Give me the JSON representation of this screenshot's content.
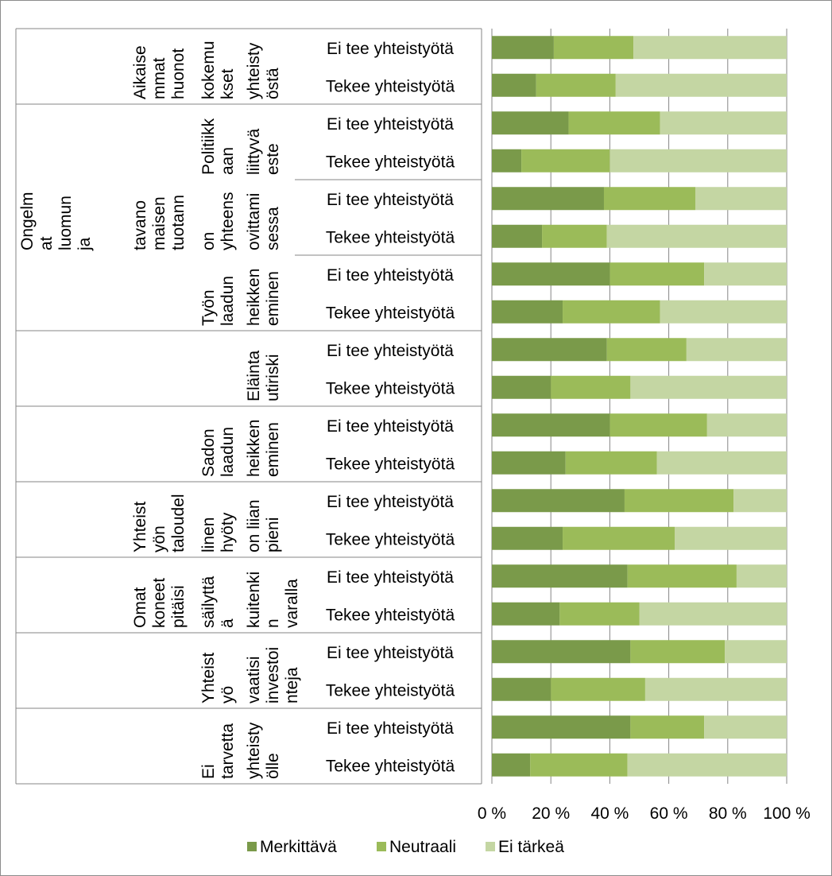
{
  "chart_data": {
    "type": "bar",
    "orientation": "horizontal",
    "stacked": "percent",
    "xlim": [
      0,
      100
    ],
    "xticks": [
      0,
      20,
      40,
      60,
      80,
      100
    ],
    "xtick_labels": [
      "0 %",
      "20 %",
      "40 %",
      "60 %",
      "80 %",
      "100 %"
    ],
    "grid": "vertical",
    "legend_position": "bottom",
    "groups": [
      {
        "label": "Aikaise mmat huonot kokemu kset yhteisty östä",
        "lines": [
          {
            "x": 182,
            "y": 8,
            "rows": [
              "Aikaise",
              "mmat",
              "huonot"
            ]
          },
          {
            "x": 268,
            "y": 8,
            "rows": [
              "kokemu",
              "kset"
            ]
          },
          {
            "x": 325,
            "y": 8,
            "rows": [
              "yhteisty",
              "östä"
            ]
          }
        ]
      },
      {
        "label": "Politiikk aan liittyvä este",
        "lines": [
          {
            "x": 268,
            "y": 94,
            "rows": [
              "Politiikk",
              "aan"
            ]
          },
          {
            "x": 325,
            "y": 94,
            "rows": [
              "liittyvä",
              "este"
            ]
          }
        ]
      },
      {
        "label": "Ongelm at luomun ja tavano maisen tuotann on yhteens ovittami sessa",
        "lines": [
          {
            "x": 40,
            "y": 84,
            "rows": [
              "Ongelm",
              "at",
              "luomun",
              "ja"
            ]
          },
          {
            "x": 182,
            "y": 84,
            "rows": [
              "tavano",
              "maisen",
              "tuotann"
            ]
          },
          {
            "x": 268,
            "y": 84,
            "rows": [
              "on",
              "yhteens"
            ]
          },
          {
            "x": 325,
            "y": 84,
            "rows": [
              "ovittami",
              "sessa"
            ]
          }
        ]
      },
      {
        "label": "Työn laadun heikken eminen",
        "lines": [
          {
            "x": 268,
            "y": 84,
            "rows": [
              "Työn",
              "laadun"
            ]
          },
          {
            "x": 325,
            "y": 84,
            "rows": [
              "heikken",
              "eminen"
            ]
          }
        ]
      },
      {
        "label": "Eläinta utiriski",
        "lines": [
          {
            "x": 325,
            "y": 84,
            "rows": [
              "Eläinta",
              "utiriski"
            ]
          }
        ]
      },
      {
        "label": "Sadon laadun heikken eminen",
        "lines": [
          {
            "x": 268,
            "y": 84,
            "rows": [
              "Sadon",
              "laadun"
            ]
          },
          {
            "x": 325,
            "y": 84,
            "rows": [
              "heikken",
              "eminen"
            ]
          }
        ]
      },
      {
        "label": "Yhteist yön taloudel linen hyöty on liian pieni",
        "lines": [
          {
            "x": 182,
            "y": 8,
            "rows": [
              "Yhteist",
              "yön",
              "taloudel"
            ]
          },
          {
            "x": 268,
            "y": 8,
            "rows": [
              "linen",
              "hyöty"
            ]
          },
          {
            "x": 325,
            "y": 8,
            "rows": [
              "on liian",
              "pieni"
            ]
          }
        ]
      },
      {
        "label": "Omat koneet pitäisi säilyttä ä kuitenki n varalla",
        "lines": [
          {
            "x": 182,
            "y": 46,
            "rows": [
              "Omat",
              "koneet",
              "pitäisi"
            ]
          },
          {
            "x": 268,
            "y": 46,
            "rows": [
              "säilyttä",
              "ä"
            ]
          },
          {
            "x": 325,
            "y": 46,
            "rows": [
              "kuitenki",
              "n",
              "varalla"
            ]
          }
        ]
      },
      {
        "label": "Yhteist yö vaatisi investoi nteja",
        "lines": [
          {
            "x": 268,
            "y": 84,
            "rows": [
              "Yhteist",
              "yö"
            ]
          },
          {
            "x": 325,
            "y": 84,
            "rows": [
              "vaatisi",
              "investoi",
              "nteja"
            ]
          }
        ]
      },
      {
        "label": "Ei tarvetta yhteisty ölle",
        "lines": [
          {
            "x": 268,
            "y": 84,
            "rows": [
              "Ei",
              "tarvetta"
            ]
          },
          {
            "x": 325,
            "y": 84,
            "rows": [
              "yhteisty",
              "ölle"
            ]
          }
        ]
      }
    ],
    "bar_labels": [
      "Ei tee yhteistyötä",
      "Tekee yhteistyötä"
    ],
    "series": [
      {
        "name": "Merkittävä",
        "color": "#7a9a4a",
        "values": [
          21,
          15,
          26,
          10,
          38,
          17,
          40,
          24,
          39,
          20,
          40,
          25,
          45,
          24,
          46,
          23,
          47,
          20,
          47,
          13
        ]
      },
      {
        "name": "Neutraali",
        "color": "#9bbb59",
        "values": [
          27,
          27,
          31,
          30,
          31,
          22,
          32,
          33,
          27,
          27,
          33,
          31,
          37,
          38,
          37,
          27,
          32,
          32,
          25,
          33
        ]
      },
      {
        "name": "Ei tärkeä",
        "color": "#c4d6a3",
        "values": [
          52,
          58,
          43,
          60,
          31,
          61,
          28,
          43,
          34,
          53,
          27,
          44,
          18,
          38,
          17,
          50,
          21,
          48,
          28,
          54
        ]
      }
    ]
  }
}
